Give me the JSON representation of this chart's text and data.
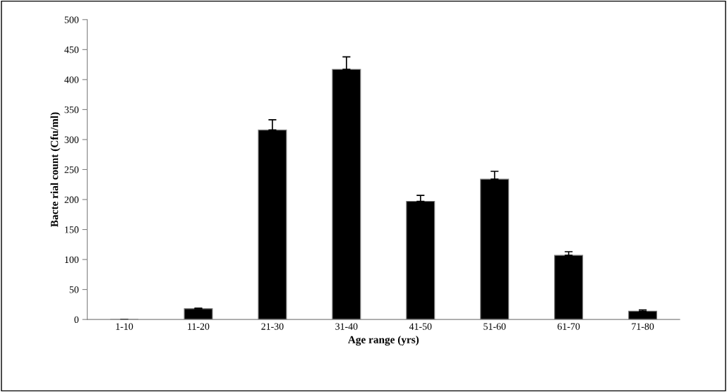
{
  "chart_data": {
    "type": "bar",
    "xlabel": "Age range (yrs)",
    "ylabel": "Bacte rial count (Cfu/ml)",
    "categories": [
      "1-10",
      "11-20",
      "21-30",
      "31-40",
      "41-50",
      "51-60",
      "61-70",
      "71-80"
    ],
    "values": [
      0,
      18,
      316,
      417,
      197,
      234,
      107,
      14
    ],
    "errors": [
      null,
      1,
      17,
      21,
      10,
      13,
      6,
      2
    ],
    "color": "#000000",
    "ylim": [
      0,
      500
    ],
    "yticks": [
      0,
      50,
      100,
      150,
      200,
      250,
      300,
      350,
      400,
      450,
      500
    ],
    "grid": false,
    "legend": false
  }
}
